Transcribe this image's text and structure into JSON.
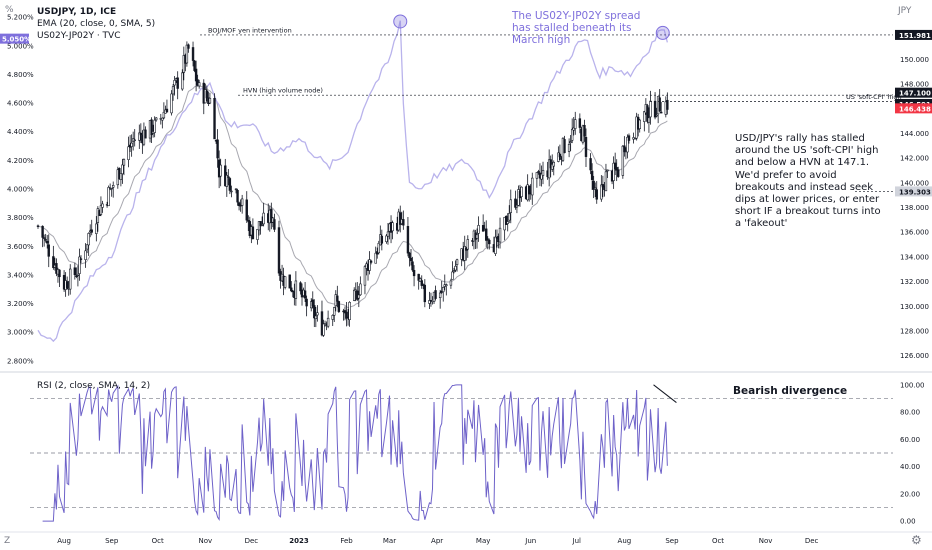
{
  "header": {
    "symbol": "USDJPY, 1D, ICE",
    "ema": "EMA (20, close, 0, SMA, 5)",
    "spread": "US02Y-JP02Y · TVC",
    "currency": "JPY",
    "percent_icon": "%",
    "z_icon": "Z"
  },
  "annotations": {
    "headline": "The US02Y-JP02Y spread has stalled beneath its March high",
    "commentary": "USD/JPY's rally has stalled around the US 'soft-CPI' high and below a HVN at 147.1. We'd prefer to avoid breakouts and instead seek dips at lower prices, or enter short IF a breakout turns into a 'fakeout'",
    "boj_line": "BOJ/MOF yen intervention",
    "hvn_line": "HVN (high volume node)",
    "softcpi_line": "US 'soft-CPI' high",
    "divergence": "Bearish divergence"
  },
  "colors": {
    "up": "#131722",
    "down": "#131722",
    "spread": "#b9b3ec",
    "rsi": "#6e62c9",
    "ema": "#a8a8b0",
    "badge_red": "#f23645",
    "badge_dark": "#131722",
    "badge_gray": "#d1d4dc",
    "badge_purple": "#7e6fdc"
  },
  "chart_data": [
    {
      "type": "candlestick",
      "title": "USDJPY, 1D, ICE",
      "ylabel": "JPY",
      "ylim": [
        125,
        154
      ],
      "right_ticks": [
        126,
        128,
        130,
        132,
        134,
        136,
        138,
        140,
        142,
        144,
        146,
        148,
        150
      ],
      "badges": [
        {
          "value": "151.981",
          "style": "dark",
          "level": 151.981
        },
        {
          "value": "147.100",
          "style": "dark",
          "level": 147.1
        },
        {
          "value": "146.591",
          "style": "dark",
          "level": 146.591
        },
        {
          "value": "146.438",
          "style": "red",
          "level": 146.438
        },
        {
          "value": "139.303",
          "style": "gray",
          "level": 139.303
        }
      ],
      "x_ticks": [
        "Aug",
        "Sep",
        "Oct",
        "Nov",
        "Dec",
        "2023",
        "Feb",
        "Mar",
        "Apr",
        "May",
        "Jun",
        "Jul",
        "Aug",
        "Sep",
        "Oct",
        "Nov",
        "Dec"
      ],
      "x_start": "2022-07-15",
      "series_anchors": [
        [
          "2022-07-15",
          136.5
        ],
        [
          "2022-08-01",
          131.8
        ],
        [
          "2022-08-10",
          132.9
        ],
        [
          "2022-08-20",
          137.0
        ],
        [
          "2022-09-01",
          139.6
        ],
        [
          "2022-09-15",
          143.5
        ],
        [
          "2022-10-01",
          144.7
        ],
        [
          "2022-10-15",
          148.5
        ],
        [
          "2022-10-21",
          150.8
        ],
        [
          "2022-10-28",
          147.5
        ],
        [
          "2022-11-05",
          146.6
        ],
        [
          "2022-11-10",
          141.0
        ],
        [
          "2022-11-20",
          139.8
        ],
        [
          "2022-12-01",
          136.0
        ],
        [
          "2022-12-15",
          137.4
        ],
        [
          "2022-12-20",
          132.5
        ],
        [
          "2023-01-01",
          131.1
        ],
        [
          "2023-01-16",
          128.4
        ],
        [
          "2023-01-25",
          130.4
        ],
        [
          "2023-02-01",
          128.9
        ],
        [
          "2023-02-15",
          133.5
        ],
        [
          "2023-03-01",
          136.2
        ],
        [
          "2023-03-08",
          137.2
        ],
        [
          "2023-03-15",
          133.0
        ],
        [
          "2023-03-24",
          130.7
        ],
        [
          "2023-04-05",
          131.2
        ],
        [
          "2023-04-15",
          133.8
        ],
        [
          "2023-05-01",
          136.5
        ],
        [
          "2023-05-10",
          134.8
        ],
        [
          "2023-05-20",
          138.5
        ],
        [
          "2023-06-01",
          139.5
        ],
        [
          "2023-06-15",
          141.5
        ],
        [
          "2023-06-30",
          144.4
        ],
        [
          "2023-07-05",
          144.0
        ],
        [
          "2023-07-14",
          138.2
        ],
        [
          "2023-07-20",
          140.5
        ],
        [
          "2023-07-28",
          141.0
        ],
        [
          "2023-08-01",
          143.2
        ],
        [
          "2023-08-15",
          145.6
        ],
        [
          "2023-08-20",
          146.0
        ],
        [
          "2023-08-25",
          146.4
        ],
        [
          "2023-08-29",
          146.44
        ]
      ],
      "ema_period": 20
    },
    {
      "type": "line",
      "name": "US02Y-JP02Y",
      "left_ticks": [
        "2.800%",
        "3.000%",
        "3.200%",
        "3.400%",
        "3.600%",
        "3.800%",
        "4.000%",
        "4.200%",
        "4.400%",
        "4.600%",
        "4.800%",
        "5.000%",
        "5.200%"
      ],
      "left_tick_values": [
        2.8,
        3.0,
        3.2,
        3.4,
        3.6,
        3.8,
        4.0,
        4.2,
        4.4,
        4.6,
        4.8,
        5.0,
        5.2
      ],
      "ylim": [
        2.75,
        5.25
      ],
      "badge": "5.050%",
      "badge_value": 5.05,
      "anchors": [
        [
          "2022-07-15",
          3.0
        ],
        [
          "2022-07-25",
          2.95
        ],
        [
          "2022-08-05",
          3.15
        ],
        [
          "2022-08-20",
          3.4
        ],
        [
          "2022-09-01",
          3.55
        ],
        [
          "2022-09-15",
          3.9
        ],
        [
          "2022-10-01",
          4.25
        ],
        [
          "2022-10-21",
          4.6
        ],
        [
          "2022-11-04",
          4.75
        ],
        [
          "2022-11-15",
          4.45
        ],
        [
          "2022-12-01",
          4.45
        ],
        [
          "2022-12-15",
          4.25
        ],
        [
          "2023-01-01",
          4.35
        ],
        [
          "2023-01-20",
          4.15
        ],
        [
          "2023-02-01",
          4.25
        ],
        [
          "2023-02-15",
          4.65
        ],
        [
          "2023-03-01",
          4.9
        ],
        [
          "2023-03-08",
          5.17
        ],
        [
          "2023-03-10",
          4.6
        ],
        [
          "2023-03-14",
          4.05
        ],
        [
          "2023-03-20",
          4.0
        ],
        [
          "2023-04-01",
          4.1
        ],
        [
          "2023-04-20",
          4.2
        ],
        [
          "2023-05-05",
          3.95
        ],
        [
          "2023-05-20",
          4.3
        ],
        [
          "2023-06-01",
          4.5
        ],
        [
          "2023-06-15",
          4.75
        ],
        [
          "2023-07-01",
          5.0
        ],
        [
          "2023-07-07",
          5.05
        ],
        [
          "2023-07-15",
          4.8
        ],
        [
          "2023-07-25",
          4.85
        ],
        [
          "2023-08-05",
          4.8
        ],
        [
          "2023-08-15",
          4.95
        ],
        [
          "2023-08-25",
          5.12
        ],
        [
          "2023-08-29",
          5.05
        ]
      ]
    },
    {
      "type": "line",
      "name": "RSI (2, close, SMA, 14, 2)",
      "ylim": [
        -5,
        105
      ],
      "ticks": [
        "0.00",
        "20.00",
        "40.00",
        "60.00",
        "80.00",
        "100.00"
      ],
      "tick_values": [
        0,
        20,
        40,
        60,
        80,
        100
      ],
      "bands": [
        10,
        50,
        90
      ],
      "divergence": {
        "from": "2023-08-20",
        "to": "2023-08-31"
      }
    }
  ]
}
